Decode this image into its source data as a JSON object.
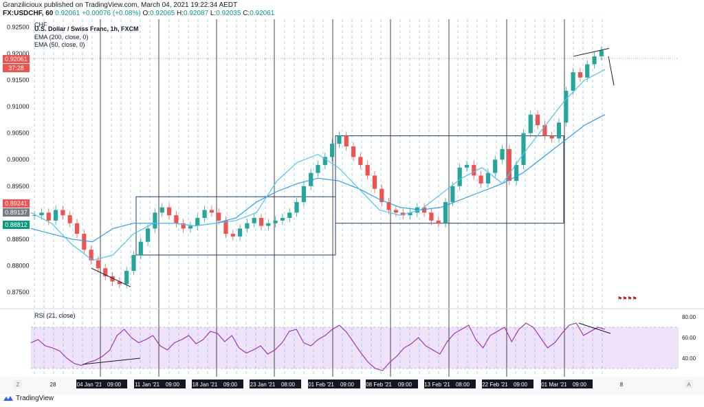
{
  "header": {
    "publisher_line": "Granzilicioux published on TradingView.com, March 04, 2021 19:22:34 AEDT",
    "symbol": "FX:USDCHF, 60",
    "last": "0.92061",
    "change": "+0.00076 (+0.08%)",
    "open_label": "O:",
    "open": "0.92065",
    "high_label": "H:",
    "high": "0.92087",
    "low_label": "L:",
    "low": "0.92035",
    "close_label": "C:",
    "close": "0.92061"
  },
  "legend": {
    "title": "U.S. Dollar / Swiss Franc, 1h, FXCM",
    "ema200": "EMA (200, close, 0)",
    "ema50": "EMA (50, close, 0)",
    "currency": "CHF",
    "rsi": "RSI (21, close)"
  },
  "price_tags": {
    "last": "0.92061",
    "countdown": "37:28",
    "tag_red": "0.89241",
    "tag_gray": "0.89137",
    "tag_green": "0.88812"
  },
  "footer": {
    "brand": "TradingView",
    "z_button": "Z",
    "a_button": "A"
  },
  "colors": {
    "ema200": "#2a9df4",
    "ema50": "#4fc3f7",
    "up": "#26a69a",
    "down": "#ef5350",
    "rsi_line": "#9c27b0",
    "rsi_band": "#e9d7f7",
    "grid_dashed": "#2196f3",
    "box": "#1e3a6e"
  },
  "chart_data": [
    {
      "type": "line",
      "title": "U.S. Dollar / Swiss Franc, 1h, FXCM",
      "y_ticks": [
        "0.92500",
        "0.92000",
        "0.91500",
        "0.91000",
        "0.90500",
        "0.90000",
        "0.89500",
        "0.89000",
        "0.88500",
        "0.88000",
        "0.87500"
      ],
      "ylim": [
        0.872,
        0.9265
      ],
      "x_ticks": [
        "28",
        "04 Jan '21",
        "09:00",
        "11 Jan '21",
        "09:00",
        "18 Jan '21",
        "09:00",
        "23 Jan '21",
        "08:00",
        "01 Feb '21",
        "09:00",
        "08 Feb '21",
        "09:00",
        "13 Feb '21",
        "08:00",
        "22 Feb '21",
        "09:00",
        "01 Mar '21",
        "09:00",
        "8"
      ],
      "series": [
        {
          "name": "USDCHF close (approx.)",
          "values": [
            0.8895,
            0.89,
            0.8885,
            0.8905,
            0.8895,
            0.888,
            0.886,
            0.883,
            0.881,
            0.8795,
            0.878,
            0.877,
            0.8765,
            0.879,
            0.882,
            0.8845,
            0.887,
            0.89,
            0.891,
            0.8895,
            0.888,
            0.887,
            0.8875,
            0.889,
            0.8905,
            0.89,
            0.8885,
            0.886,
            0.8855,
            0.887,
            0.888,
            0.889,
            0.8875,
            0.888,
            0.8885,
            0.889,
            0.89,
            0.892,
            0.895,
            0.8975,
            0.899,
            0.9005,
            0.903,
            0.9045,
            0.9025,
            0.9005,
            0.899,
            0.897,
            0.8945,
            0.892,
            0.8905,
            0.89,
            0.8895,
            0.89,
            0.891,
            0.89,
            0.8885,
            0.888,
            0.892,
            0.895,
            0.8985,
            0.899,
            0.897,
            0.8955,
            0.8975,
            0.9,
            0.902,
            0.896,
            0.899,
            0.905,
            0.9085,
            0.9065,
            0.9045,
            0.904,
            0.907,
            0.913,
            0.9165,
            0.9155,
            0.918,
            0.9195,
            0.9206
          ]
        },
        {
          "name": "EMA (200, close, 0)",
          "values": [
            0.887,
            0.886,
            0.885,
            0.8845,
            0.887,
            0.888,
            0.888,
            0.888,
            0.8875,
            0.888,
            0.889,
            0.892,
            0.894,
            0.8955,
            0.8965,
            0.896,
            0.8945,
            0.8925,
            0.891,
            0.8905,
            0.891,
            0.8925,
            0.894,
            0.8955,
            0.8975,
            0.9005,
            0.9035,
            0.9065,
            0.9085
          ]
        },
        {
          "name": "EMA (50, close, 0)",
          "values": [
            0.89,
            0.888,
            0.884,
            0.881,
            0.882,
            0.886,
            0.888,
            0.888,
            0.8875,
            0.888,
            0.8885,
            0.89,
            0.896,
            0.8995,
            0.901,
            0.8985,
            0.8945,
            0.8905,
            0.8895,
            0.8905,
            0.8935,
            0.8965,
            0.8985,
            0.8955,
            0.901,
            0.906,
            0.911,
            0.915,
            0.917
          ]
        }
      ]
    },
    {
      "type": "line",
      "title": "RSI (21, close)",
      "y_ticks": [
        "80.00",
        "60.00",
        "40.00"
      ],
      "ylim": [
        22,
        88
      ],
      "band": [
        30,
        70
      ],
      "series": [
        {
          "name": "RSI (21, close)",
          "values": [
            55,
            58,
            52,
            50,
            47,
            40,
            35,
            33,
            36,
            38,
            42,
            48,
            62,
            68,
            60,
            55,
            58,
            62,
            52,
            48,
            55,
            58,
            62,
            54,
            58,
            66,
            64,
            56,
            62,
            50,
            45,
            48,
            52,
            44,
            48,
            55,
            66,
            68,
            55,
            52,
            58,
            62,
            68,
            72,
            65,
            55,
            45,
            36,
            30,
            28,
            36,
            42,
            50,
            54,
            60,
            52,
            48,
            44,
            56,
            64,
            68,
            72,
            58,
            50,
            62,
            66,
            70,
            56,
            68,
            74,
            70,
            60,
            50,
            55,
            64,
            72,
            74,
            62,
            66,
            70,
            68
          ]
        }
      ]
    }
  ]
}
